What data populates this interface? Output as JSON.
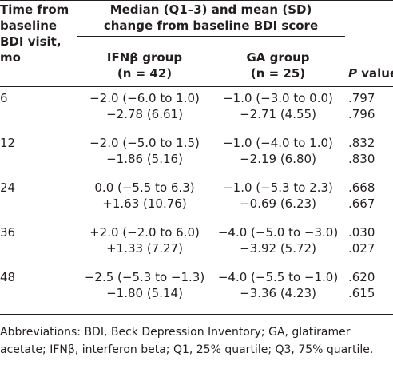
{
  "header": {
    "col1": [
      "Time from",
      "baseline",
      "BDI visit,",
      "mo"
    ],
    "group_header": [
      "Median (Q1–3) and mean (SD)",
      "change from baseline BDI score"
    ],
    "ifn": [
      "IFNβ group",
      "(n = 42)"
    ],
    "ga": [
      "GA group",
      "(n = 25)"
    ],
    "p_italic": "P",
    "p_rest": " value"
  },
  "rows": [
    {
      "time": "6",
      "ifn_median": "−2.0 (−6.0 to 1.0)",
      "ifn_mean": "−2.78 (6.61)",
      "ga_median": "−1.0 (−3.0 to 0.0)",
      "ga_mean": "−2.71 (4.55)",
      "p1": ".797",
      "p2": ".796"
    },
    {
      "time": "12",
      "ifn_median": "−2.0 (−5.0 to 1.5)",
      "ifn_mean": "−1.86 (5.16)",
      "ga_median": "−1.0 (−4.0 to 1.0)",
      "ga_mean": "−2.19 (6.80)",
      "p1": ".832",
      "p2": ".830"
    },
    {
      "time": "24",
      "ifn_median": "0.0 (−5.5 to 6.3)",
      "ifn_mean": "+1.63 (10.76)",
      "ga_median": "−1.0 (−5.3 to 2.3)",
      "ga_mean": "−0.69 (6.23)",
      "p1": ".668",
      "p2": ".667"
    },
    {
      "time": "36",
      "ifn_median": "+2.0 (−2.0 to 6.0)",
      "ifn_mean": "+1.33 (7.27)",
      "ga_median": "−4.0 (−5.0 to −3.0)",
      "ga_mean": "−3.92 (5.72)",
      "p1": ".030",
      "p2": ".027"
    },
    {
      "time": "48",
      "ifn_median": "−2.5 (−5.3 to −1.3)",
      "ifn_mean": "−1.80 (5.14)",
      "ga_median": "−4.0 (−5.5 to −1.0)",
      "ga_mean": "−3.36 (4.23)",
      "p1": ".620",
      "p2": ".615"
    }
  ],
  "footnote": [
    "Abbreviations: BDI, Beck Depression Inventory; GA, glatiramer",
    "acetate; IFNβ, interferon beta; Q1, 25% quartile; Q3, 75% quartile."
  ]
}
